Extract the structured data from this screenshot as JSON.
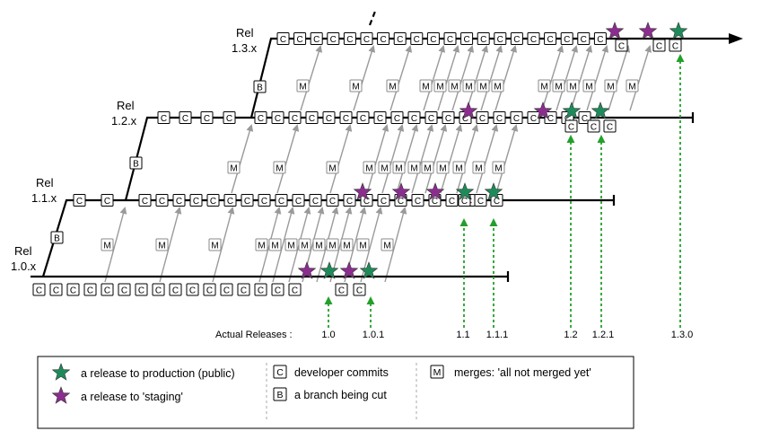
{
  "branches": [
    {
      "label_line1": "Rel",
      "label_line2": "1.0.x"
    },
    {
      "label_line1": "Rel",
      "label_line2": "1.1.x"
    },
    {
      "label_line1": "Rel",
      "label_line2": "1.2.x"
    },
    {
      "label_line1": "Rel",
      "label_line2": "1.3.x"
    }
  ],
  "box_letters": {
    "commit": "C",
    "merge": "M",
    "branch": "B"
  },
  "actual_releases": {
    "label": "Actual Releases :",
    "versions": [
      "1.0",
      "1.0.1",
      "1.1",
      "1.1.1",
      "1.2",
      "1.2.1",
      "1.3.0"
    ]
  },
  "legend": {
    "production": "a release to production (public)",
    "staging": "a release to 'staging'",
    "commits": "developer commits",
    "branch_cut": "a branch being cut",
    "merges": "merges: 'all not merged yet'"
  },
  "colors": {
    "production_star": "#1e8a5a",
    "staging_star": "#8b2d8e",
    "release_arrow": "#22a02a",
    "merge_arrow": "#9a9a9a"
  }
}
